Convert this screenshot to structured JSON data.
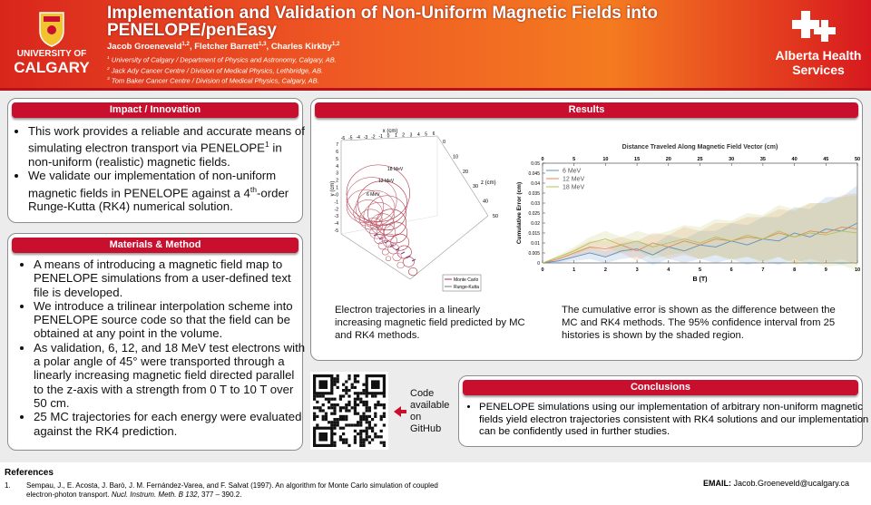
{
  "header": {
    "title": "Implementation and Validation of Non-Uniform Magnetic Fields into PENELOPE/penEasy",
    "authors": [
      {
        "name": "Jacob Groeneveld",
        "sup": "1,2"
      },
      {
        "name": "Fletcher Barrett",
        "sup": "1,3"
      },
      {
        "name": "Charles Kirkby",
        "sup": "1,2"
      }
    ],
    "affiliations": [
      {
        "sup": "1",
        "text": "University of Calgary / Department of Physics and Astronomy, Calgary, AB."
      },
      {
        "sup": "2",
        "text": "Jack Ady Cancer Centre / Division of Medical Physics, Lethbridge, AB."
      },
      {
        "sup": "3",
        "text": "Tom Baker Cancer Centre / Division of Medical Physics, Calgary, AB."
      }
    ],
    "left_logo": {
      "line1": "UNIVERSITY OF",
      "line2": "CALGARY"
    },
    "right_logo": {
      "line1": "Alberta Health",
      "line2": "Services"
    }
  },
  "impact": {
    "heading": "Impact / Innovation",
    "bullets": [
      [
        "This work provides a reliable and accurate means of simulating electron transport via PENELOPE",
        {
          "sup": "1"
        },
        " in non-uniform (realistic) magnetic fields."
      ],
      [
        "We validate our implementation of non-uniform magnetic fields in PENELOPE against a 4",
        {
          "sup": "th"
        },
        "-order Runge-Kutta (RK4) numerical solution."
      ]
    ]
  },
  "method": {
    "heading": "Materials & Method",
    "bullets": [
      [
        "A means of introducing a magnetic field map to PENELOPE simulations from a user-defined text file is developed."
      ],
      [
        "We introduce a trilinear interpolation scheme into PENELOPE source code so that the field can be obtained at any point in the volume."
      ],
      [
        "As validation, 6, 12, and 18 MeV test electrons with a polar angle of 45° were transported through a linearly increasing magnetic field directed parallel to the z-axis with a strength from 0 T to 10 T over 50 cm."
      ],
      [
        "25 MC trajectories for each energy were evaluated against the RK4 prediction."
      ]
    ]
  },
  "results": {
    "heading": "Results",
    "trajectory_figure": {
      "x_label": "x (cm)",
      "y_label": "y (cm)",
      "z_label": "z (cm)",
      "xticks": [
        -6,
        -5,
        -4,
        -3,
        -2,
        -1,
        0,
        1,
        2,
        3,
        4,
        5,
        6
      ],
      "yticks": [
        7,
        6,
        5,
        4,
        3,
        2,
        1,
        0,
        -1,
        -2,
        -3,
        -4,
        -5
      ],
      "zticks": [
        0,
        10,
        20,
        30,
        40,
        50
      ],
      "energy_labels": [
        "18 MeV",
        "12 MeV",
        "6 MeV"
      ],
      "legend": [
        "Monte Carlo",
        "Runge-Kutta"
      ],
      "caption": "Electron trajectories in a linearly increasing magnetic field predicted by MC and RK4 methods."
    },
    "chart_data": {
      "type": "line",
      "title": "Distance Traveled Along Magnetic Field Vector (cm)",
      "x_label": "B (T)",
      "y_label": "Cumulative Error (cm)",
      "x": [
        0,
        0.5,
        1,
        1.5,
        2,
        2.5,
        3,
        3.5,
        4,
        4.5,
        5,
        5.5,
        6,
        6.5,
        7,
        7.5,
        8,
        8.5,
        9,
        9.5,
        10
      ],
      "xlim": [
        0,
        10
      ],
      "xticks": [
        0,
        1,
        2,
        3,
        4,
        5,
        6,
        7,
        8,
        9,
        10
      ],
      "x2lim": [
        0,
        50
      ],
      "x2ticks": [
        0,
        5,
        10,
        15,
        20,
        25,
        30,
        35,
        40,
        45,
        50
      ],
      "ylim": [
        0,
        0.05
      ],
      "yticks": [
        0,
        0.005,
        0.01,
        0.015,
        0.02,
        0.025,
        0.03,
        0.035,
        0.04,
        0.045,
        0.05
      ],
      "legend": "top-left",
      "series": [
        {
          "name": "6 MeV",
          "color": "#5b8fc9",
          "values": [
            0,
            0.001,
            0.003,
            0.005,
            0.003,
            0.006,
            0.007,
            0.004,
            0.008,
            0.006,
            0.009,
            0.008,
            0.011,
            0.009,
            0.012,
            0.011,
            0.015,
            0.013,
            0.017,
            0.016,
            0.02
          ],
          "ci": [
            0,
            0.001,
            0.002,
            0.003,
            0.003,
            0.004,
            0.004,
            0.005,
            0.006,
            0.006,
            0.007,
            0.008,
            0.009,
            0.01,
            0.011,
            0.012,
            0.013,
            0.014,
            0.016,
            0.017,
            0.019
          ]
        },
        {
          "name": "12 MeV",
          "color": "#e08a5a",
          "values": [
            0,
            0.002,
            0.005,
            0.008,
            0.007,
            0.009,
            0.006,
            0.01,
            0.008,
            0.011,
            0.009,
            0.012,
            0.011,
            0.013,
            0.012,
            0.015,
            0.013,
            0.016,
            0.015,
            0.018,
            0.017
          ],
          "ci": [
            0,
            0.001,
            0.002,
            0.003,
            0.004,
            0.004,
            0.005,
            0.005,
            0.006,
            0.007,
            0.007,
            0.008,
            0.009,
            0.01,
            0.011,
            0.012,
            0.013,
            0.014,
            0.015,
            0.016,
            0.018
          ]
        },
        {
          "name": "18 MeV",
          "color": "#b5c25a",
          "values": [
            0,
            0.003,
            0.006,
            0.01,
            0.012,
            0.009,
            0.011,
            0.008,
            0.01,
            0.012,
            0.01,
            0.013,
            0.011,
            0.014,
            0.012,
            0.016,
            0.013,
            0.015,
            0.014,
            0.016,
            0.015
          ],
          "ci": [
            0,
            0.001,
            0.002,
            0.003,
            0.004,
            0.004,
            0.005,
            0.006,
            0.006,
            0.007,
            0.008,
            0.009,
            0.01,
            0.011,
            0.012,
            0.013,
            0.014,
            0.015,
            0.016,
            0.017,
            0.019
          ]
        }
      ],
      "caption": "The cumulative error is shown as the difference between the MC and RK4 methods. The 95% confidence interval from 25 histories is shown by the shaded region."
    }
  },
  "code_note": "Code available on GitHub",
  "conclusions": {
    "heading": "Conclusions",
    "bullets": [
      [
        "PENELOPE simulations using our implementation of arbitrary non-uniform magnetic fields yield electron trajectories consistent with RK4 solutions and our implementation can be confidently used in further studies."
      ]
    ]
  },
  "references": {
    "heading": "References",
    "items": [
      {
        "number": "1.",
        "parts": [
          "Sempau, J., E. Acosta, J. Barò, J. M. Fernández-Varea, and F. Salvat (1997). An algorithm for Monte Carlo simulation of coupled electron-photon transport. ",
          {
            "i": "Nucl. Instrum. Meth. B 132"
          },
          ", 377 – 390.2."
        ]
      }
    ]
  },
  "contact": {
    "label": "EMAIL:",
    "address": "Jacob.Groeneveld@ucalgary.ca"
  }
}
